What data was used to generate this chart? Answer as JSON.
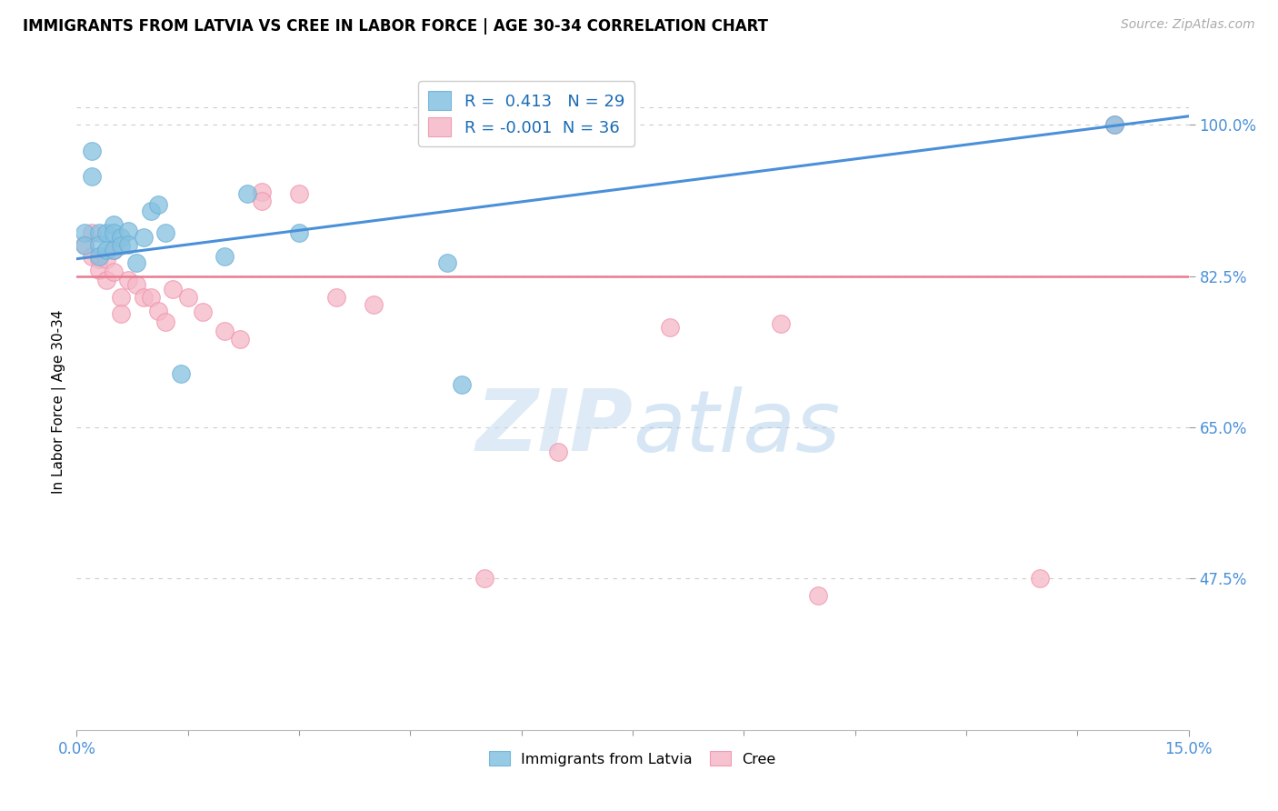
{
  "title": "IMMIGRANTS FROM LATVIA VS CREE IN LABOR FORCE | AGE 30-34 CORRELATION CHART",
  "source": "Source: ZipAtlas.com",
  "ylabel": "In Labor Force | Age 30-34",
  "xlim": [
    0.0,
    0.15
  ],
  "ylim": [
    0.3,
    1.06
  ],
  "ytick_labels": [
    "47.5%",
    "65.0%",
    "82.5%",
    "100.0%"
  ],
  "ytick_values": [
    0.475,
    0.65,
    0.825,
    1.0
  ],
  "grid_yticks": [
    0.475,
    0.65,
    0.825,
    1.0
  ],
  "r_latvia": 0.413,
  "n_latvia": 29,
  "r_cree": -0.001,
  "n_cree": 36,
  "blue_line_x": [
    0.0,
    0.15
  ],
  "blue_line_y": [
    0.845,
    1.01
  ],
  "pink_line_y": 0.825,
  "latvia_color": "#85c1e0",
  "latvia_edge": "#6aaed6",
  "cree_color": "#f5b8c8",
  "cree_edge": "#f090a8",
  "latvia_x": [
    0.001,
    0.001,
    0.002,
    0.002,
    0.003,
    0.003,
    0.003,
    0.004,
    0.004,
    0.005,
    0.005,
    0.005,
    0.006,
    0.006,
    0.007,
    0.007,
    0.008,
    0.009,
    0.01,
    0.011,
    0.012,
    0.014,
    0.02,
    0.023,
    0.03,
    0.05,
    0.052,
    0.14
  ],
  "latvia_y": [
    0.875,
    0.86,
    0.97,
    0.94,
    0.875,
    0.862,
    0.848,
    0.875,
    0.855,
    0.885,
    0.875,
    0.855,
    0.87,
    0.86,
    0.877,
    0.862,
    0.84,
    0.87,
    0.9,
    0.908,
    0.875,
    0.712,
    0.848,
    0.92,
    0.875,
    0.84,
    0.7,
    1.0
  ],
  "cree_x": [
    0.001,
    0.002,
    0.002,
    0.003,
    0.003,
    0.004,
    0.004,
    0.005,
    0.005,
    0.006,
    0.006,
    0.007,
    0.008,
    0.009,
    0.01,
    0.011,
    0.012,
    0.013,
    0.015,
    0.017,
    0.02,
    0.022,
    0.025,
    0.025,
    0.03,
    0.035,
    0.04,
    0.055,
    0.065,
    0.08,
    0.095,
    0.1,
    0.13,
    0.14
  ],
  "cree_y": [
    0.862,
    0.875,
    0.848,
    0.845,
    0.832,
    0.845,
    0.82,
    0.855,
    0.83,
    0.8,
    0.782,
    0.82,
    0.815,
    0.8,
    0.8,
    0.785,
    0.772,
    0.81,
    0.8,
    0.784,
    0.762,
    0.752,
    0.922,
    0.912,
    0.92,
    0.8,
    0.792,
    0.475,
    0.622,
    0.766,
    0.77,
    0.455,
    0.475,
    1.0
  ],
  "xtick_positions": [
    0.0,
    0.15
  ],
  "xtick_minor_positions": [
    0.015,
    0.03,
    0.045,
    0.06,
    0.075,
    0.09,
    0.105,
    0.12,
    0.135
  ]
}
